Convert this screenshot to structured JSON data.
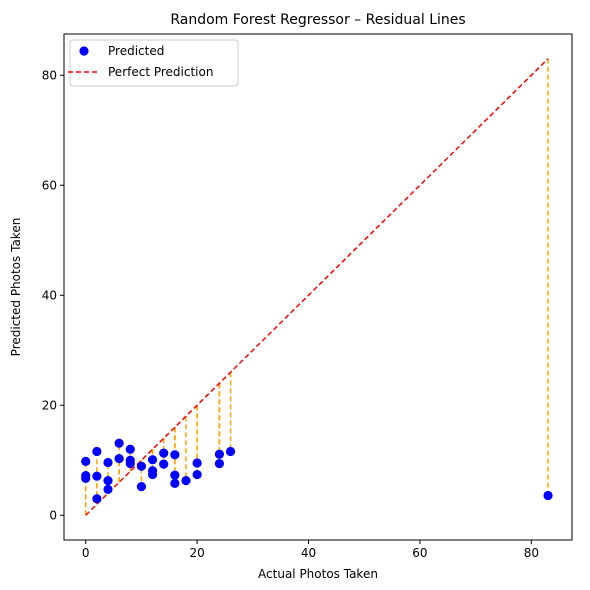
{
  "chart_data": {
    "type": "scatter",
    "title": "Random Forest Regressor – Residual Lines",
    "xlabel": "Actual Photos Taken",
    "ylabel": "Predicted Photos Taken",
    "xlim": [
      -3.9,
      87.3
    ],
    "ylim": [
      -4.5,
      87.5
    ],
    "xticks": [
      0,
      20,
      40,
      60,
      80
    ],
    "yticks": [
      0,
      20,
      40,
      60,
      80
    ],
    "grid": false,
    "legend_position": "top-left",
    "legend": [
      {
        "label": "Predicted",
        "kind": "marker",
        "color": "#0000ff"
      },
      {
        "label": "Perfect Prediction",
        "kind": "dashed-line",
        "color": "#ff0000"
      }
    ],
    "perfect_line": {
      "x": [
        0,
        83
      ],
      "y": [
        0,
        83
      ],
      "color": "#ff0000"
    },
    "residual_color": "#ffa500",
    "point_color": "#0000ff",
    "points": [
      {
        "x": 0,
        "y": 9.8
      },
      {
        "x": 0,
        "y": 7.2
      },
      {
        "x": 0,
        "y": 6.7
      },
      {
        "x": 2,
        "y": 11.6
      },
      {
        "x": 2,
        "y": 7.1
      },
      {
        "x": 2,
        "y": 3.0
      },
      {
        "x": 4,
        "y": 9.6
      },
      {
        "x": 4,
        "y": 6.3
      },
      {
        "x": 4,
        "y": 4.7
      },
      {
        "x": 6,
        "y": 13.1
      },
      {
        "x": 6,
        "y": 10.3
      },
      {
        "x": 8,
        "y": 12.0
      },
      {
        "x": 8,
        "y": 10.0
      },
      {
        "x": 8,
        "y": 9.4
      },
      {
        "x": 10,
        "y": 8.9
      },
      {
        "x": 10,
        "y": 5.2
      },
      {
        "x": 12,
        "y": 10.1
      },
      {
        "x": 12,
        "y": 8.1
      },
      {
        "x": 12,
        "y": 7.4
      },
      {
        "x": 14,
        "y": 11.3
      },
      {
        "x": 14,
        "y": 9.3
      },
      {
        "x": 16,
        "y": 11.0
      },
      {
        "x": 16,
        "y": 7.3
      },
      {
        "x": 16,
        "y": 5.8
      },
      {
        "x": 18,
        "y": 6.3
      },
      {
        "x": 20,
        "y": 9.5
      },
      {
        "x": 20,
        "y": 7.4
      },
      {
        "x": 24,
        "y": 11.1
      },
      {
        "x": 24,
        "y": 9.4
      },
      {
        "x": 26,
        "y": 11.6
      },
      {
        "x": 83,
        "y": 3.6
      }
    ]
  }
}
